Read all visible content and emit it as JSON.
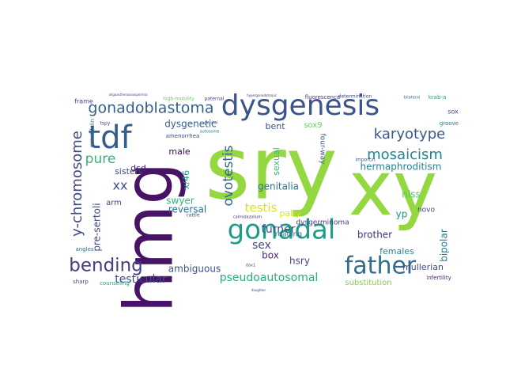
{
  "words": [
    {
      "text": "sry",
      "color": "#93d741"
    },
    {
      "text": "xy",
      "color": "#93d741"
    },
    {
      "text": "hmg",
      "color": "#471365"
    },
    {
      "text": "dysgenesis",
      "color": "#3a548c"
    },
    {
      "text": "gonadal",
      "color": "#1e9c89"
    },
    {
      "text": "father",
      "color": "#2f6c8e"
    },
    {
      "text": "tdf",
      "color": "#365c8d"
    },
    {
      "text": "gonadoblastoma",
      "color": "#355f8d"
    },
    {
      "text": "karyotype",
      "color": "#38598c"
    },
    {
      "text": "bending",
      "color": "#433e85"
    },
    {
      "text": "mosaicism",
      "color": "#26828e"
    },
    {
      "text": "y-chromosome",
      "color": "#3f4889"
    },
    {
      "text": "pure",
      "color": "#31b57b"
    },
    {
      "text": "ovotestis",
      "color": "#32658e"
    },
    {
      "text": "testis",
      "color": "#dde318"
    },
    {
      "text": "xx",
      "color": "#3b528b"
    },
    {
      "text": "hermaphroditism",
      "color": "#26828e"
    },
    {
      "text": "sex",
      "color": "#404688"
    },
    {
      "text": "turner",
      "color": "#3a538b"
    },
    {
      "text": "genitalia",
      "color": "#2d718e"
    },
    {
      "text": "reversal",
      "color": "#2c738e"
    },
    {
      "text": "testicular",
      "color": "#3e4989"
    },
    {
      "text": "pseudoautosomal",
      "color": "#27ad81"
    },
    {
      "text": "ambiguous",
      "color": "#3b528b"
    },
    {
      "text": "dysgenetic",
      "color": "#355f8d"
    },
    {
      "text": "sisters",
      "color": "#3e4989"
    },
    {
      "text": "sexual",
      "color": "#37b878"
    },
    {
      "text": "pre-sertoli",
      "color": "#404588"
    },
    {
      "text": "x/46",
      "color": "#1f9a8a"
    },
    {
      "text": "swyer",
      "color": "#31b57b"
    },
    {
      "text": "male",
      "color": "#440154"
    },
    {
      "text": "dsd",
      "color": "#482173"
    },
    {
      "text": "bent",
      "color": "#3b528b"
    },
    {
      "text": "brother",
      "color": "#46337e"
    },
    {
      "text": "hsry",
      "color": "#3f4788"
    },
    {
      "text": "bipolar",
      "color": "#2a788e"
    },
    {
      "text": "nlss",
      "color": "#56c667"
    },
    {
      "text": "box",
      "color": "#482878"
    },
    {
      "text": "yp",
      "color": "#1f948c"
    },
    {
      "text": "arm",
      "color": "#3d4e8a"
    },
    {
      "text": "paby",
      "color": "#dde318"
    },
    {
      "text": "sox9",
      "color": "#6ccd5a"
    },
    {
      "text": "females",
      "color": "#26828e"
    },
    {
      "text": "mullerian",
      "color": "#3e4989"
    },
    {
      "text": "substitution",
      "color": "#7ad151"
    },
    {
      "text": "reading",
      "color": "#2c728e"
    },
    {
      "text": "frame",
      "color": "#3e4989"
    },
    {
      "text": "four-way",
      "color": "#3b528b"
    },
    {
      "text": "novo",
      "color": "#3d4d8a"
    },
    {
      "text": "infertility",
      "color": "#482475"
    },
    {
      "text": "counseling",
      "color": "#1f9e89"
    },
    {
      "text": "sox",
      "color": "#404688"
    },
    {
      "text": "groove",
      "color": "#2a768e"
    },
    {
      "text": "krab-a",
      "color": "#20a386"
    },
    {
      "text": "dysgerminoma",
      "color": "#453781"
    },
    {
      "text": "determination",
      "color": "#3f4788"
    },
    {
      "text": "fluorescence",
      "color": "#46337e"
    },
    {
      "text": "angles",
      "color": "#2d708e"
    },
    {
      "text": "sharp",
      "color": "#3e4a89"
    },
    {
      "text": "camodulin",
      "color": "#26828e"
    },
    {
      "text": "high-mobility",
      "color": "#6ccd5a"
    },
    {
      "text": "cattle",
      "color": "#3b528b"
    },
    {
      "text": "paternal",
      "color": "#3f4788"
    },
    {
      "text": "tspy",
      "color": "#3e4989"
    },
    {
      "text": "amenorrhea",
      "color": "#3d4d8a"
    },
    {
      "text": "calmodulin",
      "color": "#3b528b"
    },
    {
      "text": "calmidazolium",
      "color": "#46337e"
    },
    {
      "text": "autosome",
      "color": "#2c738e"
    },
    {
      "text": "genital",
      "color": "#3a548c"
    },
    {
      "text": "daughter",
      "color": "#404688"
    },
    {
      "text": "dax1",
      "color": "#3b528b"
    },
    {
      "text": "importin",
      "color": "#3b528b"
    },
    {
      "text": "bilateral",
      "color": "#2d708e"
    },
    {
      "text": "oligoasthenozoospermia",
      "color": "#3e4989"
    },
    {
      "text": "hypergonadotropic",
      "color": "#46337e"
    }
  ]
}
